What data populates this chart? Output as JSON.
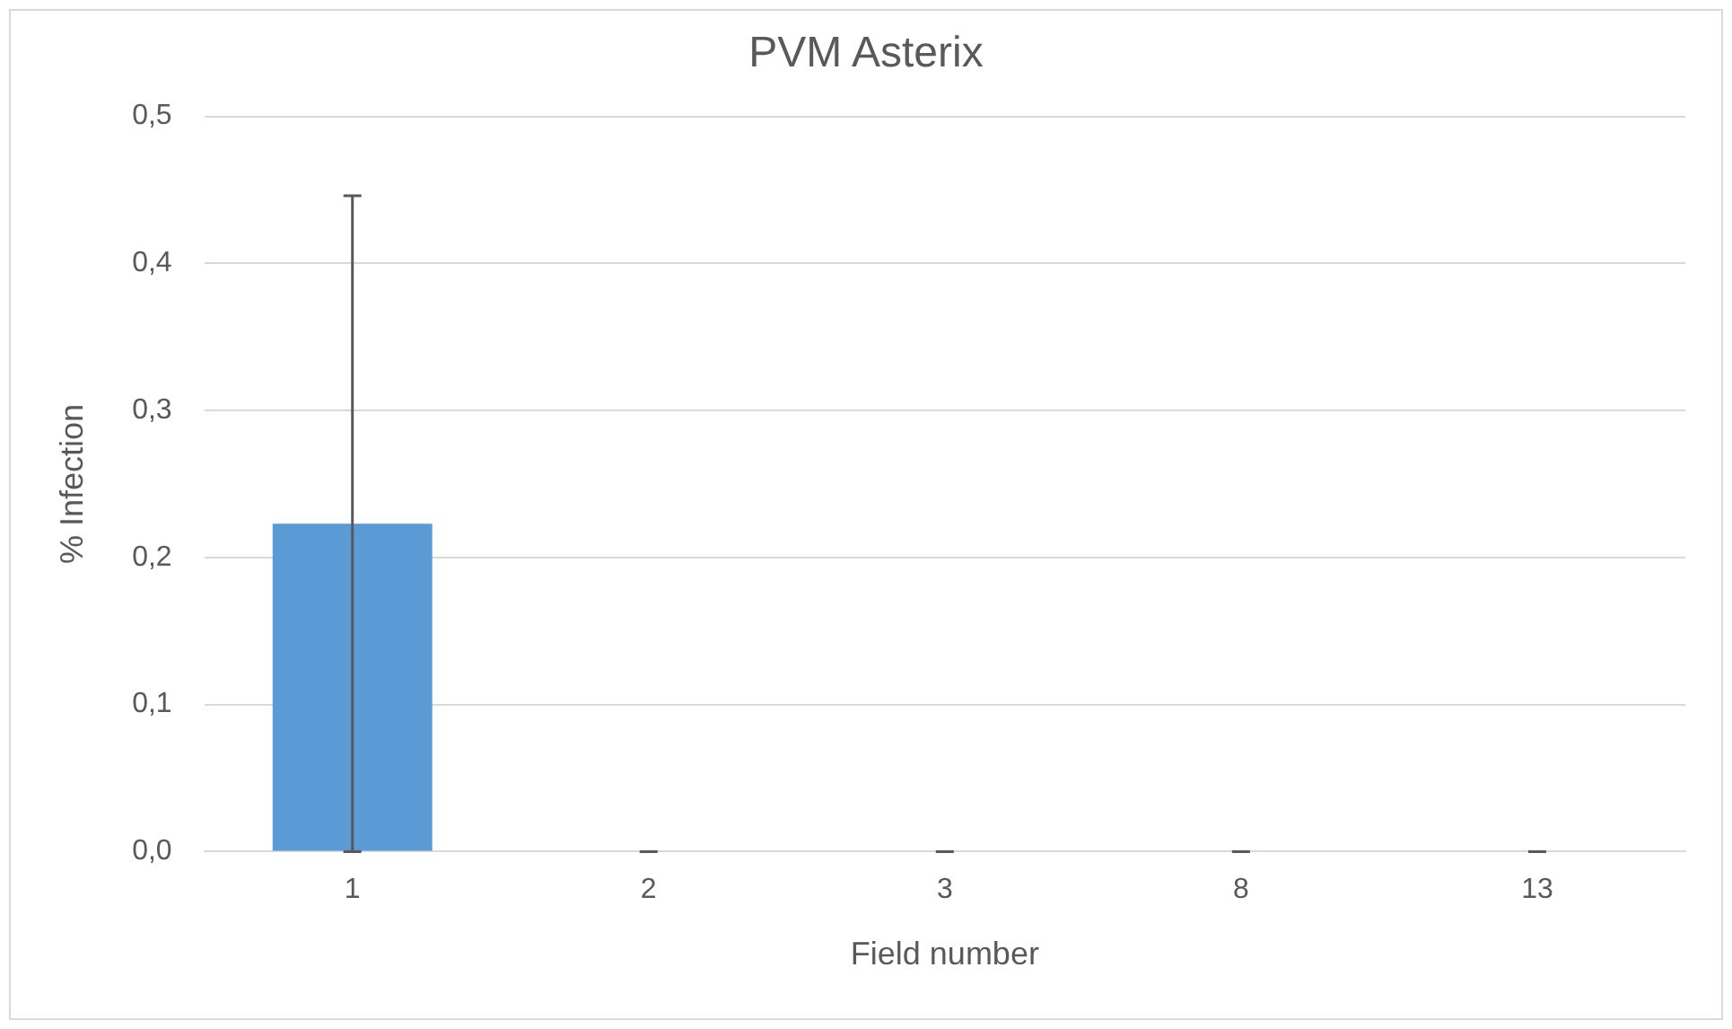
{
  "chart_data": {
    "type": "bar",
    "title": "PVM Asterix",
    "xlabel": "Field number",
    "ylabel": "% Infection",
    "categories": [
      "1",
      "2",
      "3",
      "8",
      "13"
    ],
    "values": [
      0.223,
      0,
      0,
      0,
      0
    ],
    "errors": [
      0.223,
      0,
      0,
      0,
      0
    ],
    "color": "#5b9bd5",
    "ylim": [
      0,
      0.5
    ],
    "yticks": [
      {
        "value": 0,
        "label": "0,0"
      },
      {
        "value": 0.1,
        "label": "0,1"
      },
      {
        "value": 0.2,
        "label": "0,2"
      },
      {
        "value": 0.3,
        "label": "0,3"
      },
      {
        "value": 0.4,
        "label": "0,4"
      },
      {
        "value": 0.5,
        "label": "0,5"
      }
    ],
    "grid": "y",
    "legend": false
  }
}
